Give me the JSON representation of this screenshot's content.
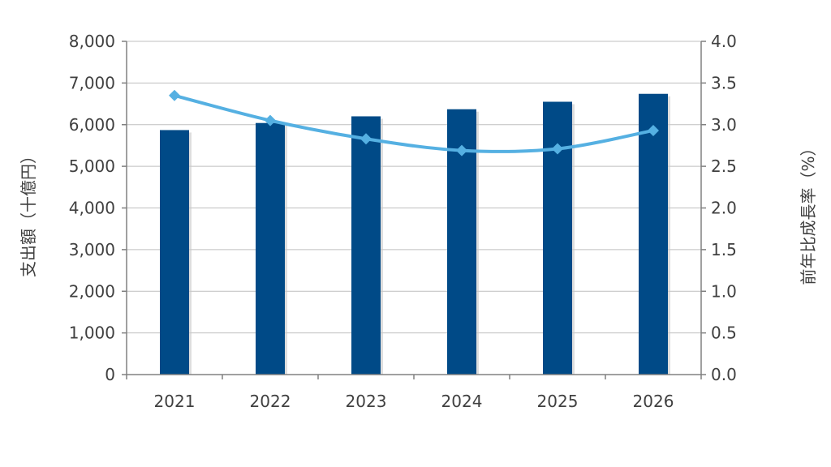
{
  "chart_data": {
    "type": "bar",
    "categories": [
      "2021",
      "2022",
      "2023",
      "2024",
      "2025",
      "2026"
    ],
    "series": [
      {
        "type": "bar",
        "axis": "left",
        "values": [
          5870,
          6040,
          6200,
          6370,
          6550,
          6740
        ],
        "color": "#004a87"
      },
      {
        "type": "line",
        "axis": "right",
        "values": [
          3.35,
          3.05,
          2.83,
          2.69,
          2.71,
          2.93
        ],
        "color": "#55b0e2"
      }
    ],
    "ylabel": "支出額（十億円）",
    "y2label": "前年比成長率（%）",
    "ylim": [
      0,
      8000
    ],
    "y2lim": [
      0,
      4.0
    ],
    "yticks": [
      "0",
      "1,000",
      "2,000",
      "3,000",
      "4,000",
      "5,000",
      "6,000",
      "7,000",
      "8,000"
    ],
    "y2ticks": [
      "0.0",
      "0.5",
      "1.0",
      "1.5",
      "2.0",
      "2.5",
      "3.0",
      "3.5",
      "4.0"
    ],
    "grid": true,
    "plot_background": "#ffffff",
    "grid_color": "#bfbfbf"
  }
}
